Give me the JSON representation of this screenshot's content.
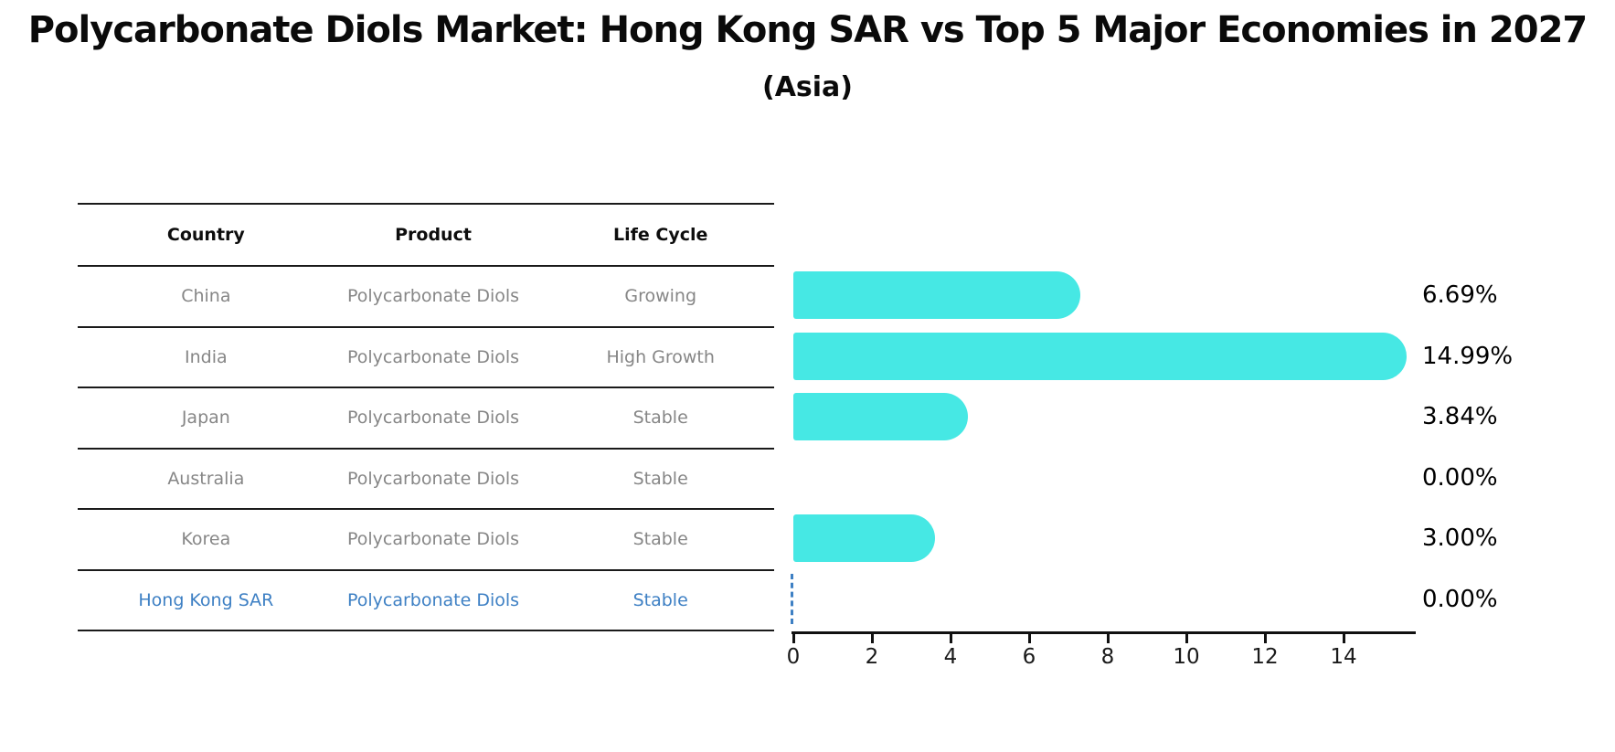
{
  "title": "Polycarbonate Diols Market: Hong Kong SAR vs Top 5 Major Economies in 2027",
  "subtitle": "(Asia)",
  "table": {
    "headers": [
      "Country",
      "Product",
      "Life Cycle"
    ],
    "rows": [
      {
        "country": "China",
        "product": "Polycarbonate Diols",
        "life_cycle": "Growing",
        "value_label": "6.69%",
        "highlight": false
      },
      {
        "country": "India",
        "product": "Polycarbonate Diols",
        "life_cycle": "High Growth",
        "value_label": "14.99%",
        "highlight": false
      },
      {
        "country": "Japan",
        "product": "Polycarbonate Diols",
        "life_cycle": "Stable",
        "value_label": "3.84%",
        "highlight": false
      },
      {
        "country": "Australia",
        "product": "Polycarbonate Diols",
        "life_cycle": "Stable",
        "value_label": "0.00%",
        "highlight": false
      },
      {
        "country": "Korea",
        "product": "Polycarbonate Diols",
        "life_cycle": "Stable",
        "value_label": "3.00%",
        "highlight": false
      },
      {
        "country": "Hong Kong SAR",
        "product": "Polycarbonate Diols",
        "life_cycle": "Stable",
        "value_label": "0.00%",
        "highlight": true
      }
    ]
  },
  "chart_data": {
    "type": "bar",
    "orientation": "horizontal",
    "title": "Polycarbonate Diols Market: Hong Kong SAR vs Top 5 Major Economies in 2027",
    "subtitle": "(Asia)",
    "categories": [
      "China",
      "India",
      "Japan",
      "Australia",
      "Korea",
      "Hong Kong SAR"
    ],
    "values": [
      6.69,
      14.99,
      3.84,
      0.0,
      3.0,
      0.0
    ],
    "value_labels": [
      "6.69%",
      "14.99%",
      "3.84%",
      "0.00%",
      "3.00%",
      "0.00%"
    ],
    "xlabel": "",
    "ylabel": "",
    "xticks": [
      0,
      2,
      4,
      6,
      8,
      10,
      12,
      14
    ],
    "xlim": [
      0,
      15.8
    ],
    "grid": false,
    "legend": false,
    "bar_color": "#46E8E4",
    "highlight_color": "#3E80C4",
    "highlighted_category": "Hong Kong SAR",
    "zero_marker_style": "dashed-line"
  }
}
